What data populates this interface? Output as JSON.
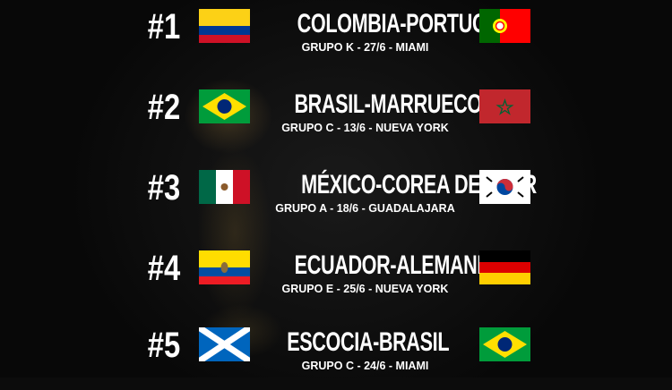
{
  "matches": [
    {
      "rank": "#1",
      "title": "COLOMBIA-PORTUGAL",
      "details": "GRUPO K - 27/6 - MIAMI",
      "flag_left": "colombia-flag",
      "flag_right": "portugal-flag"
    },
    {
      "rank": "#2",
      "title": "BRASIL-MARRUECOS",
      "details": "GRUPO C - 13/6 - NUEVA YORK",
      "flag_left": "brazil-flag",
      "flag_right": "morocco-flag"
    },
    {
      "rank": "#3",
      "title": "MÉXICO-COREA DEL SUR",
      "details": "GRUPO A - 18/6 - GUADALAJARA",
      "flag_left": "mexico-flag",
      "flag_right": "south-korea-flag"
    },
    {
      "rank": "#4",
      "title": "ECUADOR-ALEMANIA",
      "details": "GRUPO E - 25/6 - NUEVA YORK",
      "flag_left": "ecuador-flag",
      "flag_right": "germany-flag"
    },
    {
      "rank": "#5",
      "title": "ESCOCIA-BRASIL",
      "details": "GRUPO C - 24/6 - MIAMI",
      "flag_left": "scotland-flag",
      "flag_right": "brazil-flag"
    }
  ]
}
